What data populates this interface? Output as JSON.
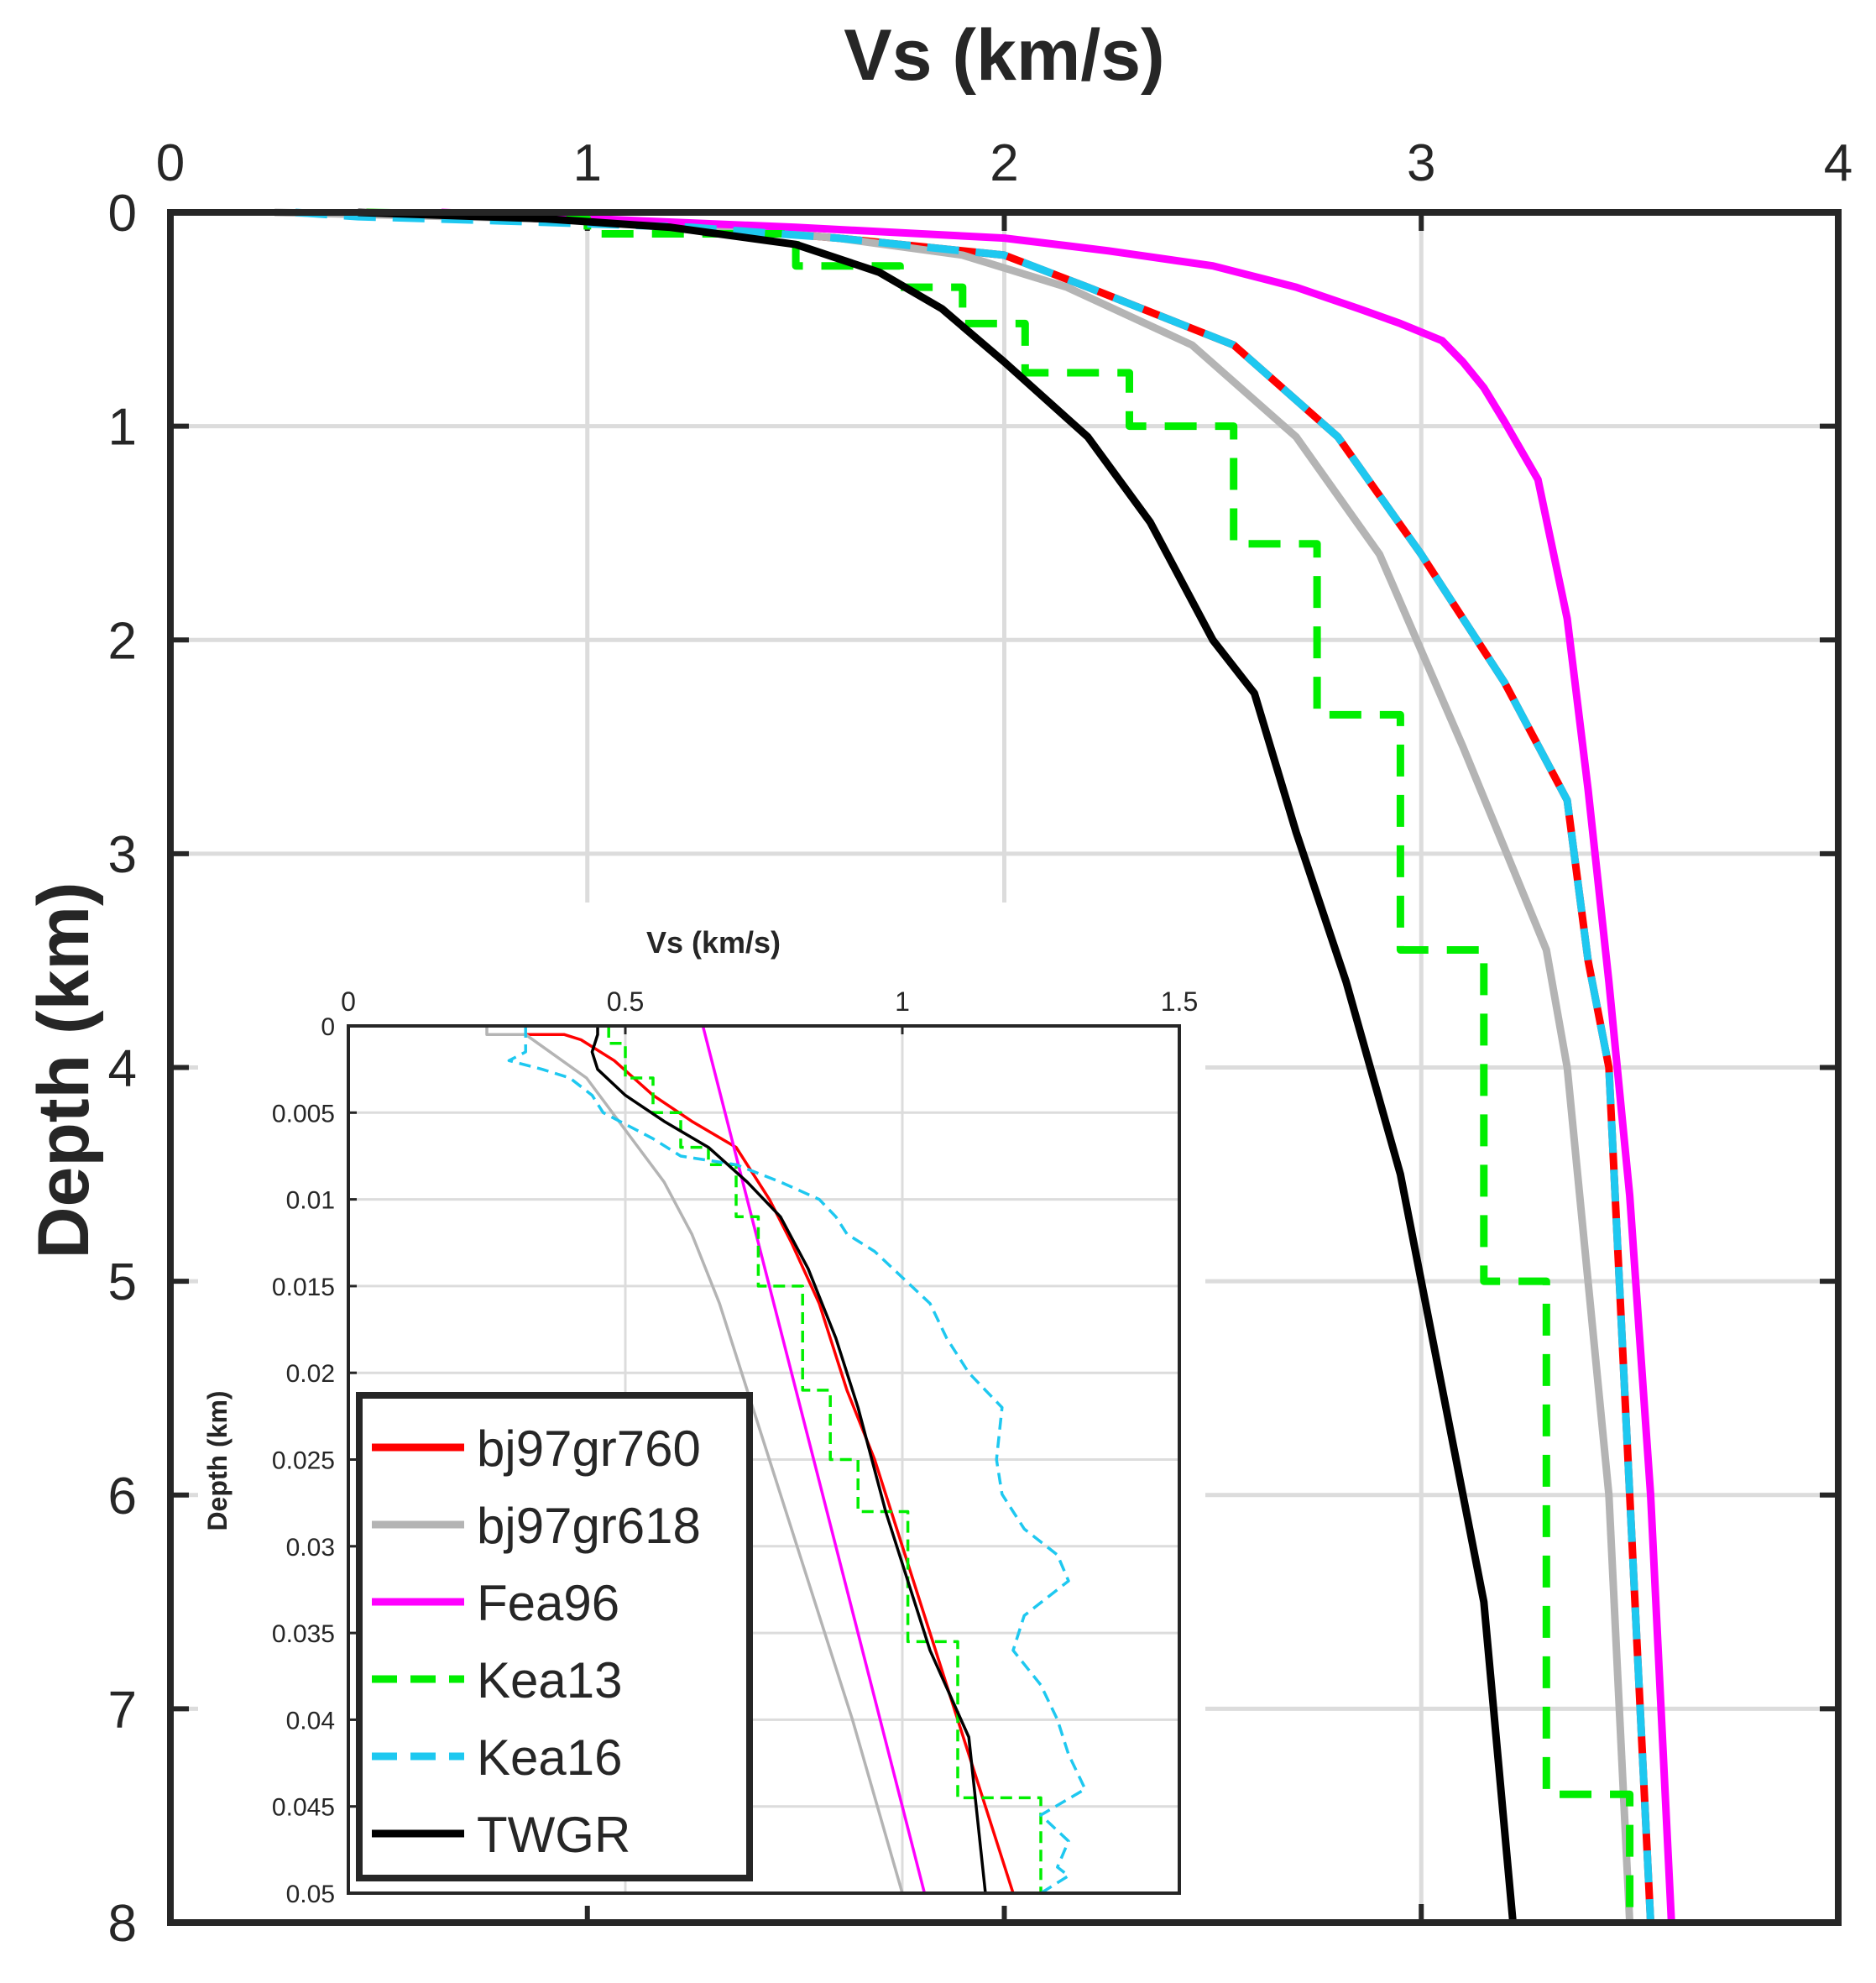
{
  "chart_data": [
    {
      "type": "line",
      "panel": "main",
      "xlabel": "Vs (km/s)",
      "ylabel": "Depth (km)",
      "x_axis_position": "top",
      "y_axis_reversed": true,
      "xlim": [
        0,
        4
      ],
      "ylim": [
        0,
        8
      ],
      "xticks": [
        0,
        1,
        2,
        3,
        4
      ],
      "yticks": [
        0,
        1,
        2,
        3,
        4,
        5,
        6,
        7,
        8
      ],
      "xtick_labels": [
        "0",
        "1",
        "2",
        "3",
        "4"
      ],
      "ytick_labels": [
        "0",
        "1",
        "2",
        "3",
        "4",
        "5",
        "6",
        "7",
        "8"
      ],
      "grid": true,
      "series": [
        {
          "name": "bj97gr760",
          "color": "#ff0000",
          "style": "solid",
          "x": [
            0.47,
            0.9,
            1.3,
            1.6,
            2.0,
            2.2,
            2.55,
            2.8,
            3.0,
            3.2,
            3.35,
            3.4,
            3.45,
            3.5,
            3.55
          ],
          "y": [
            0,
            0.03,
            0.07,
            0.12,
            0.2,
            0.35,
            0.62,
            1.05,
            1.6,
            2.2,
            2.75,
            3.5,
            4.0,
            6.0,
            8.0
          ]
        },
        {
          "name": "bj97gr618",
          "color": "#b4b4b4",
          "style": "solid",
          "x": [
            0.25,
            0.9,
            1.3,
            1.6,
            1.9,
            2.15,
            2.45,
            2.7,
            2.9,
            3.1,
            3.3,
            3.35,
            3.45,
            3.5
          ],
          "y": [
            0,
            0.03,
            0.07,
            0.12,
            0.2,
            0.35,
            0.62,
            1.05,
            1.6,
            2.5,
            3.45,
            4.0,
            6.0,
            8.0
          ]
        },
        {
          "name": "Fea96",
          "color": "#ff00ff",
          "style": "solid",
          "x": [
            0.65,
            1.5,
            2.0,
            2.25,
            2.5,
            2.7,
            2.85,
            2.95,
            3.05,
            3.1,
            3.15,
            3.2,
            3.28,
            3.35,
            3.4,
            3.45,
            3.5,
            3.55,
            3.6
          ],
          "y": [
            0,
            0.07,
            0.12,
            0.18,
            0.25,
            0.35,
            0.45,
            0.52,
            0.6,
            0.7,
            0.82,
            0.98,
            1.25,
            1.9,
            2.7,
            3.6,
            4.6,
            6.0,
            8.0
          ]
        },
        {
          "name": "Kea13",
          "color": "#00ee00",
          "style": "dashed",
          "step": true,
          "x": [
            0.47,
            0.74,
            0.74,
            1.0,
            1.0,
            1.5,
            1.5,
            1.75,
            1.75,
            1.9,
            1.9,
            2.05,
            2.05,
            2.3,
            2.3,
            2.55,
            2.55,
            2.75,
            2.75,
            2.95,
            2.95,
            3.15,
            3.15,
            3.3,
            3.3,
            3.5,
            3.5
          ],
          "y": [
            0,
            0.008,
            0.015,
            0.03,
            0.1,
            0.1,
            0.25,
            0.25,
            0.35,
            0.35,
            0.52,
            0.52,
            0.75,
            0.75,
            1.0,
            1.0,
            1.55,
            1.55,
            2.35,
            2.35,
            3.45,
            3.45,
            5.0,
            5.0,
            7.4,
            7.4,
            8.0
          ]
        },
        {
          "name": "Kea16",
          "color": "#1ec8f0",
          "style": "dashed",
          "x": [
            0.3,
            0.45,
            0.8,
            1.25,
            1.6,
            2.0,
            2.2,
            2.55,
            2.8,
            3.0,
            3.2,
            3.35,
            3.4,
            3.45,
            3.5,
            3.55
          ],
          "y": [
            0,
            0.02,
            0.04,
            0.07,
            0.12,
            0.2,
            0.35,
            0.62,
            1.05,
            1.6,
            2.2,
            2.75,
            3.5,
            4.0,
            6.0,
            8.0
          ]
        },
        {
          "name": "TWGR",
          "color": "#000000",
          "style": "solid",
          "x": [
            0.45,
            0.9,
            1.2,
            1.5,
            1.7,
            1.85,
            2.0,
            2.2,
            2.35,
            2.5,
            2.6,
            2.7,
            2.82,
            2.95,
            3.05,
            3.15,
            3.22
          ],
          "y": [
            0,
            0.03,
            0.07,
            0.15,
            0.28,
            0.45,
            0.7,
            1.05,
            1.45,
            2.0,
            2.25,
            2.9,
            3.6,
            4.5,
            5.5,
            6.5,
            8.0
          ]
        }
      ]
    },
    {
      "type": "line",
      "panel": "inset",
      "xlabel": "Vs (km/s)",
      "ylabel": "Depth (km)",
      "x_axis_position": "top",
      "y_axis_reversed": true,
      "xlim": [
        0,
        1.5
      ],
      "ylim": [
        0,
        0.05
      ],
      "xticks": [
        0,
        0.5,
        1,
        1.5
      ],
      "yticks": [
        0,
        0.005,
        0.01,
        0.015,
        0.02,
        0.025,
        0.03,
        0.035,
        0.04,
        0.045,
        0.05
      ],
      "xtick_labels": [
        "0",
        "0.5",
        "1",
        "1.5"
      ],
      "ytick_labels": [
        "0",
        "0.005",
        "0.01",
        "0.015",
        "0.02",
        "0.025",
        "0.03",
        "0.035",
        "0.04",
        "0.045",
        "0.05"
      ],
      "grid": true,
      "series": [
        {
          "name": "bj97gr760",
          "color": "#ff0000",
          "style": "solid",
          "x": [
            0.3,
            0.39,
            0.42,
            0.48,
            0.55,
            0.62,
            0.7,
            0.76,
            0.8,
            0.85,
            0.9,
            0.95,
            1.0,
            1.1,
            1.2
          ],
          "y": [
            0.0005,
            0.0005,
            0.0008,
            0.002,
            0.004,
            0.0055,
            0.007,
            0.01,
            0.0125,
            0.016,
            0.021,
            0.025,
            0.03,
            0.04,
            0.05
          ]
        },
        {
          "name": "bj97gr618",
          "color": "#b4b4b4",
          "style": "solid",
          "x": [
            0.25,
            0.25,
            0.32,
            0.43,
            0.5,
            0.57,
            0.62,
            0.67,
            0.72,
            0.77,
            0.82,
            0.91,
            1.0
          ],
          "y": [
            0,
            0.0005,
            0.0005,
            0.003,
            0.006,
            0.009,
            0.012,
            0.016,
            0.021,
            0.026,
            0.031,
            0.04,
            0.05
          ]
        },
        {
          "name": "Fea96",
          "color": "#ff00ff",
          "style": "solid",
          "x": [
            0.64,
            1.04
          ],
          "y": [
            0,
            0.05
          ]
        },
        {
          "name": "Kea13",
          "color": "#00ee00",
          "style": "dashed",
          "step": true,
          "x": [
            0.47,
            0.47,
            0.5,
            0.5,
            0.55,
            0.55,
            0.6,
            0.6,
            0.65,
            0.65,
            0.7,
            0.7,
            0.74,
            0.74,
            0.82,
            0.82,
            0.87,
            0.87,
            0.92,
            0.92,
            1.01,
            1.01,
            1.1,
            1.1,
            1.25,
            1.25
          ],
          "y": [
            0,
            0.001,
            0.001,
            0.003,
            0.003,
            0.005,
            0.005,
            0.007,
            0.007,
            0.008,
            0.008,
            0.011,
            0.011,
            0.015,
            0.015,
            0.021,
            0.021,
            0.025,
            0.025,
            0.028,
            0.028,
            0.0355,
            0.0355,
            0.0445,
            0.0445,
            0.05
          ]
        },
        {
          "name": "Kea16",
          "color": "#1ec8f0",
          "style": "dashed",
          "x": [
            0.32,
            0.32,
            0.29,
            0.35,
            0.4,
            0.44,
            0.46,
            0.55,
            0.6,
            0.7,
            0.78,
            0.85,
            0.88,
            0.9,
            0.95,
            1.0,
            1.05,
            1.08,
            1.12,
            1.15,
            1.18,
            1.17,
            1.18,
            1.2,
            1.22,
            1.28,
            1.3,
            1.22,
            1.2,
            1.25,
            1.28,
            1.3,
            1.33,
            1.25,
            1.3,
            1.28,
            1.3,
            1.25
          ],
          "y": [
            0,
            0.0015,
            0.002,
            0.0025,
            0.003,
            0.004,
            0.005,
            0.0065,
            0.0075,
            0.008,
            0.009,
            0.01,
            0.011,
            0.012,
            0.013,
            0.0145,
            0.016,
            0.018,
            0.02,
            0.021,
            0.022,
            0.025,
            0.027,
            0.028,
            0.029,
            0.0305,
            0.032,
            0.034,
            0.036,
            0.038,
            0.04,
            0.042,
            0.044,
            0.0455,
            0.047,
            0.0485,
            0.049,
            0.05
          ]
        },
        {
          "name": "TWGR",
          "color": "#000000",
          "style": "solid",
          "x": [
            0.45,
            0.45,
            0.44,
            0.45,
            0.5,
            0.57,
            0.65,
            0.72,
            0.78,
            0.83,
            0.88,
            0.92,
            0.97,
            1.05,
            1.12,
            1.15
          ],
          "y": [
            0,
            0.0005,
            0.0015,
            0.0025,
            0.004,
            0.0055,
            0.007,
            0.009,
            0.011,
            0.014,
            0.018,
            0.022,
            0.028,
            0.036,
            0.041,
            0.05
          ]
        }
      ]
    }
  ]
}
